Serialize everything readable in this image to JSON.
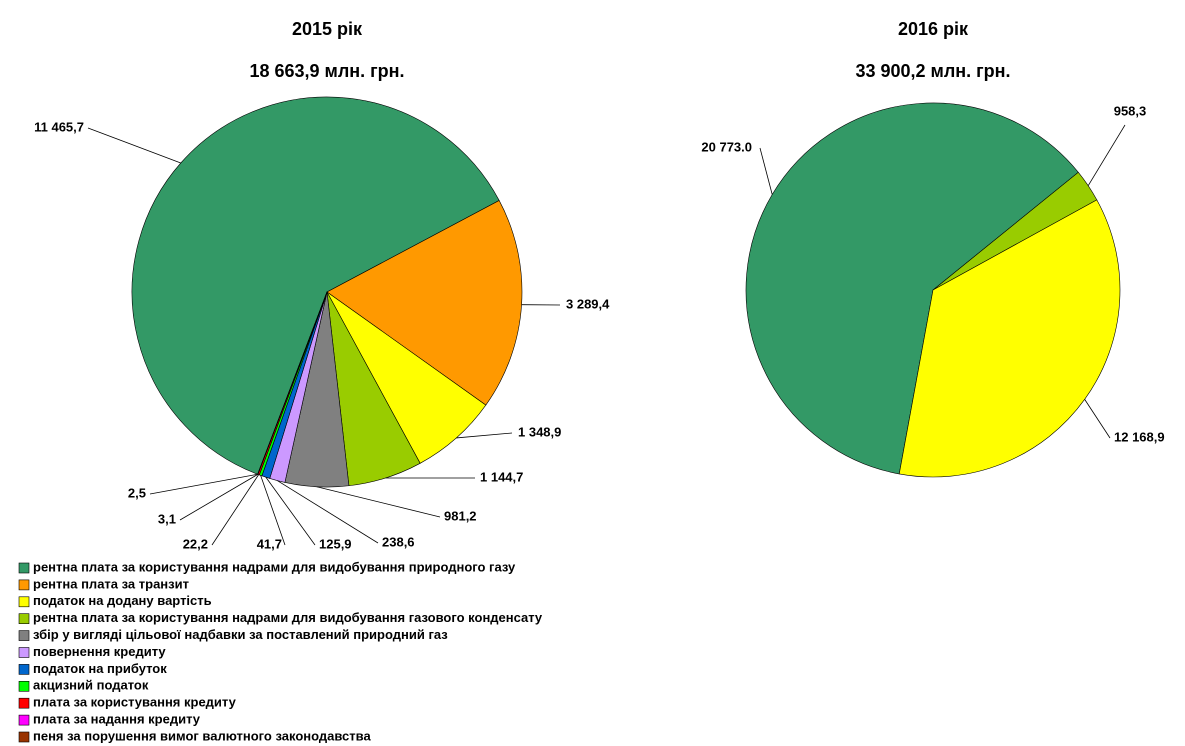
{
  "chart_data": [
    {
      "type": "pie",
      "title": "2015 рік",
      "subtitle": "18 663,9 млн. грн.",
      "values": [
        11465.7,
        3289.4,
        1348.9,
        1144.7,
        981.2,
        238.6,
        125.9,
        41.7,
        22.2,
        3.1,
        2.5
      ],
      "value_labels": [
        "11 465,7",
        "3 289,4",
        "1 348,9",
        "1 144,7",
        "981,2",
        "238,6",
        "125,9",
        "41,7",
        "22,2",
        "3,1",
        "2,5"
      ],
      "colors": [
        "#339966",
        "#ff9900",
        "#ffff00",
        "#99cc00",
        "#808080",
        "#cc99ff",
        "#0066cc",
        "#00ff00",
        "#ff0000",
        "#ff00ff",
        "#993300"
      ]
    },
    {
      "type": "pie",
      "title": "2016 рік",
      "subtitle": "33 900,2 млн. грн.",
      "values": [
        20773.0,
        958.3,
        12168.9
      ],
      "value_labels": [
        "20 773.0",
        "958,3",
        "12 168,9"
      ],
      "colors": [
        "#339966",
        "#99cc00",
        "#ffff00"
      ]
    }
  ],
  "legend": {
    "items": [
      {
        "name": "рентна плата за користування надрами для видобування природного газу",
        "color": "#339966"
      },
      {
        "name": "рентна плата за транзит",
        "color": "#ff9900"
      },
      {
        "name": "податок на додану вартість",
        "color": "#ffff00"
      },
      {
        "name": "рентна плата за користування надрами для видобування газового конденсату",
        "color": "#99cc00"
      },
      {
        "name": "збір у вигляді цільової надбавки за поставлений природний газ",
        "color": "#808080"
      },
      {
        "name": "повернення кредиту",
        "color": "#cc99ff"
      },
      {
        "name": "податок на прибуток",
        "color": "#0066cc"
      },
      {
        "name": "акцизний податок",
        "color": "#00ff00"
      },
      {
        "name": "плата за користування кредиту",
        "color": "#ff0000"
      },
      {
        "name": "плата за надання кредиту",
        "color": "#ff00ff"
      },
      {
        "name": "пеня за порушення вимог валютного законодавства",
        "color": "#993300"
      }
    ]
  }
}
